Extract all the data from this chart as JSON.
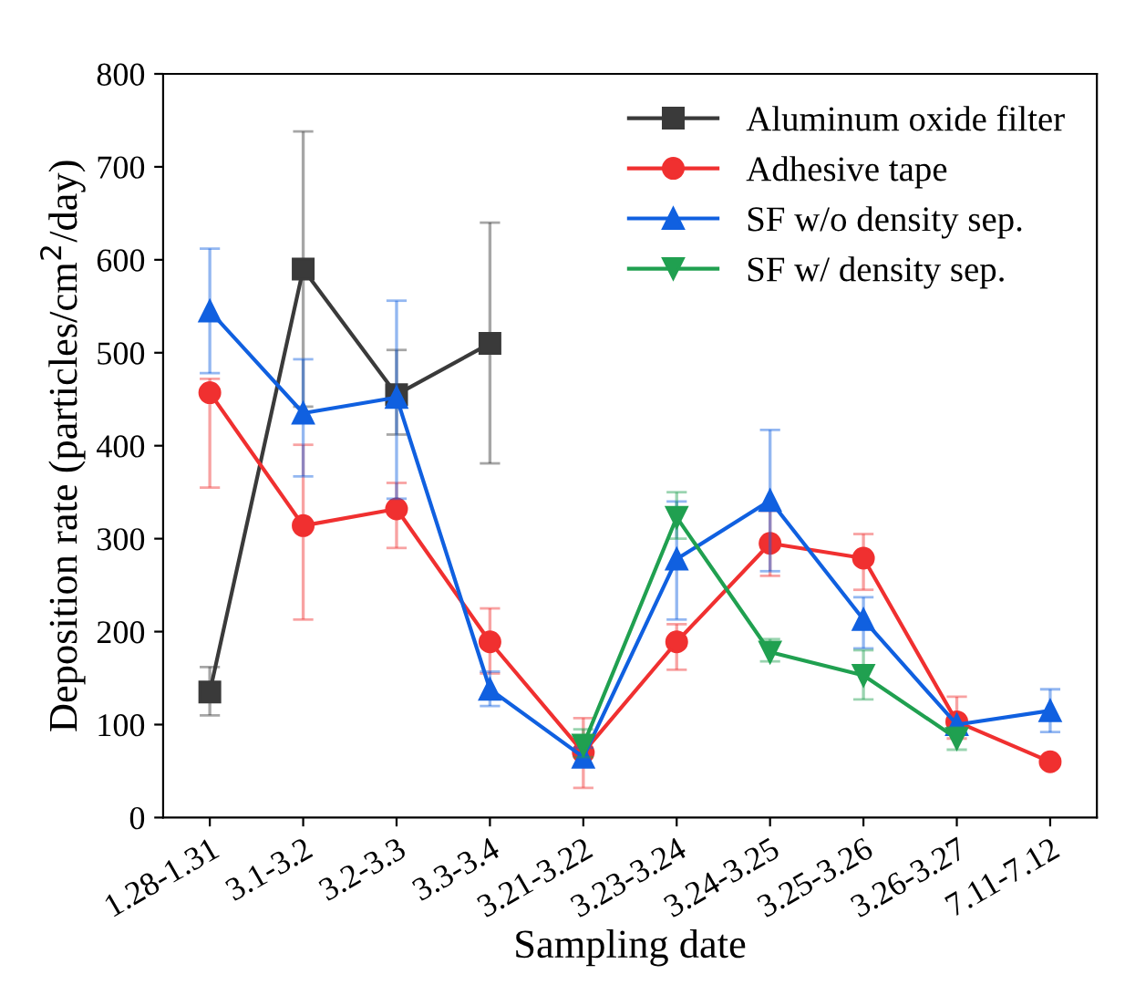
{
  "chart_data": {
    "type": "line",
    "xlabel": "Sampling date",
    "ylabel": "Deposition rate (particles/cm$^{2}$/day)",
    "categories": [
      "1.28-1.31",
      "3.1-3.2",
      "3.2-3.3",
      "3.3-3.4",
      "3.21-3.22",
      "3.23-3.24",
      "3.24-3.25",
      "3.25-3.26",
      "3.26-3.27",
      "7.11-7.12"
    ],
    "ylim": [
      0,
      800
    ],
    "yticks": [
      0,
      100,
      200,
      300,
      400,
      500,
      600,
      700,
      800
    ],
    "legend": "top right",
    "grid": false,
    "line_style": "solid",
    "series": [
      {
        "name": "Aluminum oxide filter",
        "color": "#3a3a3a",
        "marker": "square",
        "values": [
          135,
          590,
          455,
          510,
          null,
          null,
          null,
          null,
          null,
          null
        ],
        "errors": [
          [
            110,
            162
          ],
          [
            442,
            738
          ],
          [
            412,
            503
          ],
          [
            381,
            640
          ],
          null,
          null,
          null,
          null,
          null,
          null
        ]
      },
      {
        "name": "Adhesive tape",
        "color": "#f03030",
        "marker": "circle",
        "values": [
          457,
          314,
          332,
          189,
          70,
          189,
          295,
          279,
          103,
          60
        ],
        "errors": [
          [
            355,
            472
          ],
          [
            213,
            401
          ],
          [
            290,
            360
          ],
          [
            155,
            225
          ],
          [
            32,
            107
          ],
          [
            159,
            208
          ],
          [
            260,
            330
          ],
          [
            245,
            305
          ],
          [
            85,
            130
          ],
          null
        ]
      },
      {
        "name": "SF w/o density sep.",
        "color": "#1060e0",
        "marker": "triangle",
        "values": [
          545,
          435,
          452,
          138,
          65,
          278,
          341,
          213,
          100,
          115
        ],
        "errors": [
          [
            478,
            612
          ],
          [
            367,
            493
          ],
          [
            343,
            556
          ],
          [
            120,
            157
          ],
          [
            55,
            75
          ],
          [
            213,
            340
          ],
          [
            265,
            417
          ],
          [
            182,
            237
          ],
          null,
          [
            92,
            138
          ]
        ]
      },
      {
        "name": "SF w/ density sep.",
        "color": "#20a050",
        "marker": "triangle_down",
        "values": [
          null,
          null,
          null,
          null,
          78,
          323,
          178,
          153,
          85,
          null
        ],
        "errors": [
          null,
          null,
          null,
          null,
          [
            65,
            95
          ],
          [
            300,
            350
          ],
          [
            168,
            192
          ],
          [
            127,
            180
          ],
          [
            73,
            97
          ],
          null
        ]
      }
    ]
  }
}
